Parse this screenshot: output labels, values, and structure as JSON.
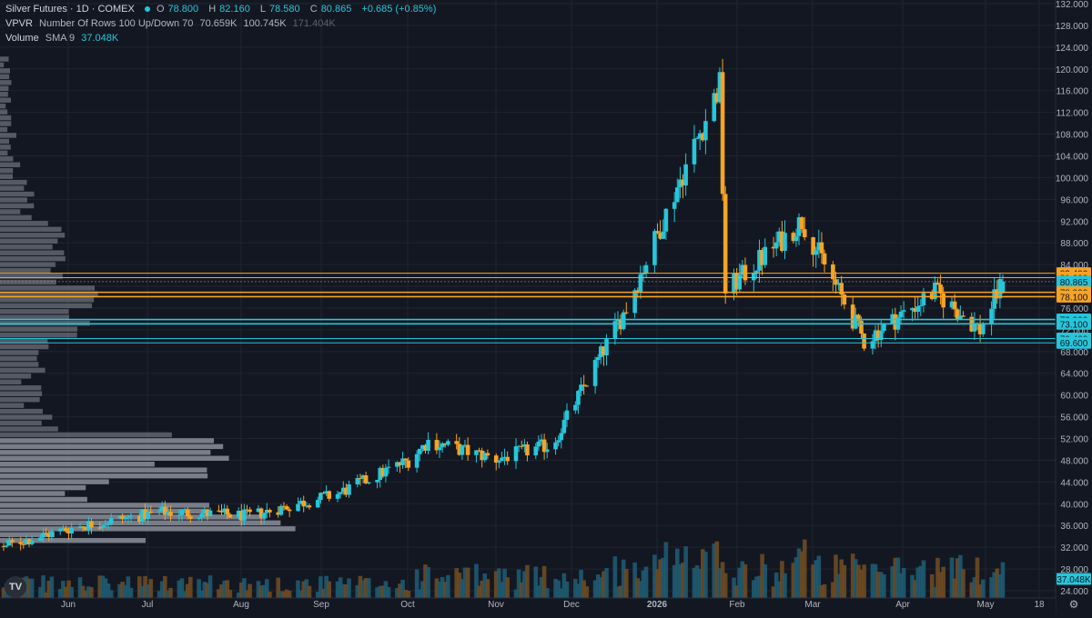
{
  "legend": {
    "title": "Silver Futures · 1D · COMEX",
    "o_label": "O",
    "o_value": "78.800",
    "h_label": "H",
    "h_value": "82.160",
    "l_label": "L",
    "l_value": "78.580",
    "c_label": "C",
    "c_value": "80.865",
    "change": "+0.685 (+0.85%)",
    "vpvr_name": "VPVR",
    "vpvr_params": "Number Of Rows 100 Up/Down 70",
    "vpvr_values": [
      "70.659K",
      "100.745K",
      "171.404K"
    ],
    "vol_name": "Volume",
    "vol_params": "SMA 9",
    "vol_value": "37.048K"
  },
  "logo_text": "TV",
  "colors": {
    "up": "#26c6da",
    "down": "#f7a325",
    "bg": "#131722",
    "grid": "#1f2430",
    "axis_text": "#b2b5be",
    "vpvr": "#8c8f99",
    "vol_up": "#1f5a70",
    "vol_down": "#6e4a22"
  },
  "chart_data": {
    "type": "candlestick",
    "y_axis": {
      "min": 24,
      "max": 132,
      "ticks": [
        "24.000",
        "28.000",
        "32.000",
        "36.000",
        "40.000",
        "44.000",
        "48.000",
        "52.000",
        "56.000",
        "60.000",
        "64.000",
        "68.000",
        "72.000",
        "76.000",
        "80.000",
        "84.000",
        "88.000",
        "92.000",
        "96.000",
        "100.000",
        "104.000",
        "108.000",
        "112.000",
        "116.000",
        "120.000",
        "124.000",
        "128.000",
        "132.000"
      ]
    },
    "x_axis": {
      "labels": [
        "Jun",
        "Jul",
        "Aug",
        "Sep",
        "Oct",
        "Nov",
        "Dec",
        "2026",
        "Feb",
        "Mar",
        "Apr",
        "May",
        "18"
      ]
    },
    "price_levels": [
      {
        "value": "82.400",
        "kind": "resistance"
      },
      {
        "value": "81.600",
        "kind": "resistance"
      },
      {
        "value": "80.865",
        "kind": "last"
      },
      {
        "value": "78.900",
        "kind": "resistance"
      },
      {
        "value": "78.100",
        "kind": "resistance"
      },
      {
        "value": "73.900",
        "kind": "support"
      },
      {
        "value": "73.100",
        "kind": "support"
      },
      {
        "value": "70.400",
        "kind": "support"
      },
      {
        "value": "69.600",
        "kind": "support"
      }
    ],
    "volume_last": "37.048K",
    "price_points": [
      {
        "date": "2025-05-20",
        "close": 32.2
      },
      {
        "date": "2025-06-15",
        "close": 35.8
      },
      {
        "date": "2025-07-15",
        "close": 38.5
      },
      {
        "date": "2025-08-15",
        "close": 37.8
      },
      {
        "date": "2025-09-15",
        "close": 41.8
      },
      {
        "date": "2025-10-10",
        "close": 48.0
      },
      {
        "date": "2025-10-17",
        "close": 51.5
      },
      {
        "date": "2025-11-10",
        "close": 48.2
      },
      {
        "date": "2025-11-30",
        "close": 51.0
      },
      {
        "date": "2025-12-26",
        "close": 76.0
      },
      {
        "date": "2026-01-28",
        "close": 117.0
      },
      {
        "date": "2026-01-30",
        "close": 79.0
      },
      {
        "date": "2026-02-26",
        "close": 92.0
      },
      {
        "date": "2026-03-20",
        "close": 70.0
      },
      {
        "date": "2026-04-14",
        "close": 79.0
      },
      {
        "date": "2026-04-30",
        "close": 72.0
      },
      {
        "date": "2026-05-08",
        "close": 80.865
      }
    ],
    "high": 121.0,
    "low": 32.0
  }
}
